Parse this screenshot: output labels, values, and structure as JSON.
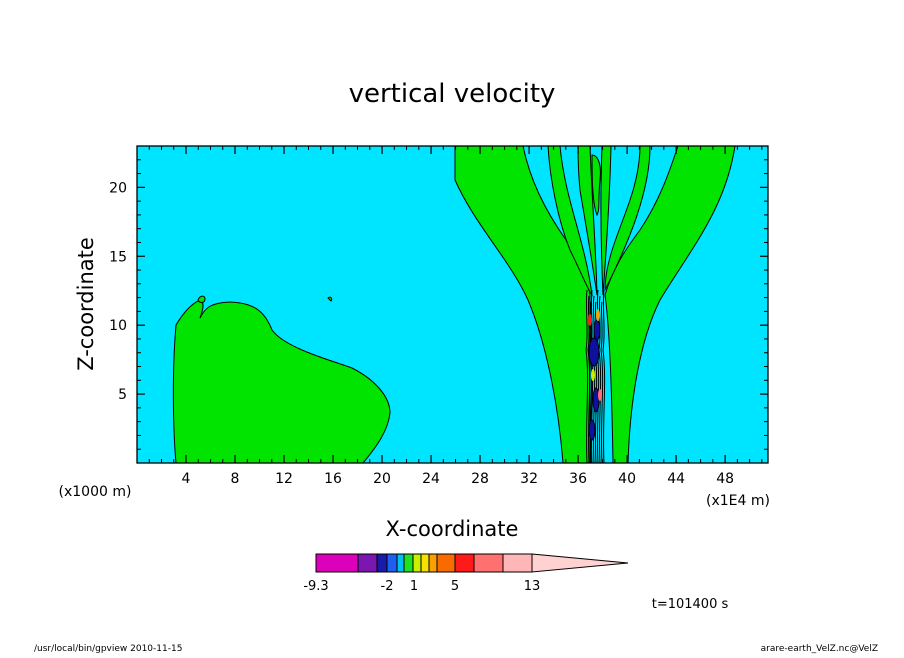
{
  "chart_data": {
    "type": "heatmap",
    "title": "vertical velocity",
    "xlabel": "X-coordinate",
    "ylabel": "Z-coordinate",
    "x_unit": "(x1E4 m)",
    "y_unit": "(x1000 m)",
    "xlim": [
      0,
      51.5
    ],
    "ylim": [
      0,
      23
    ],
    "x_ticks": [
      4,
      8,
      12,
      16,
      20,
      24,
      28,
      32,
      36,
      40,
      44,
      48
    ],
    "y_ticks": [
      5,
      10,
      15,
      20
    ],
    "time_label": "t=101400 s",
    "colorbar": {
      "colors": [
        "#dd00bb",
        "#7b16b0",
        "#1a1aa8",
        "#1f5ff0",
        "#00c0f0",
        "#21e021",
        "#c7f000",
        "#f7e100",
        "#f7a000",
        "#f76b00",
        "#ff1a1a",
        "#ff7070",
        "#ffb6b6",
        "#ffd1d1"
      ],
      "tick_labels": [
        "-9.3",
        "-2",
        "1",
        "5",
        "13"
      ]
    },
    "fill_colors": {
      "background": "#00e5ff",
      "positive": "#00e400",
      "strong": "#1010a0"
    }
  },
  "footer": {
    "left": "/usr/local/bin/gpview  2010-11-15",
    "right": "arare-earth_VelZ.nc@VelZ"
  }
}
